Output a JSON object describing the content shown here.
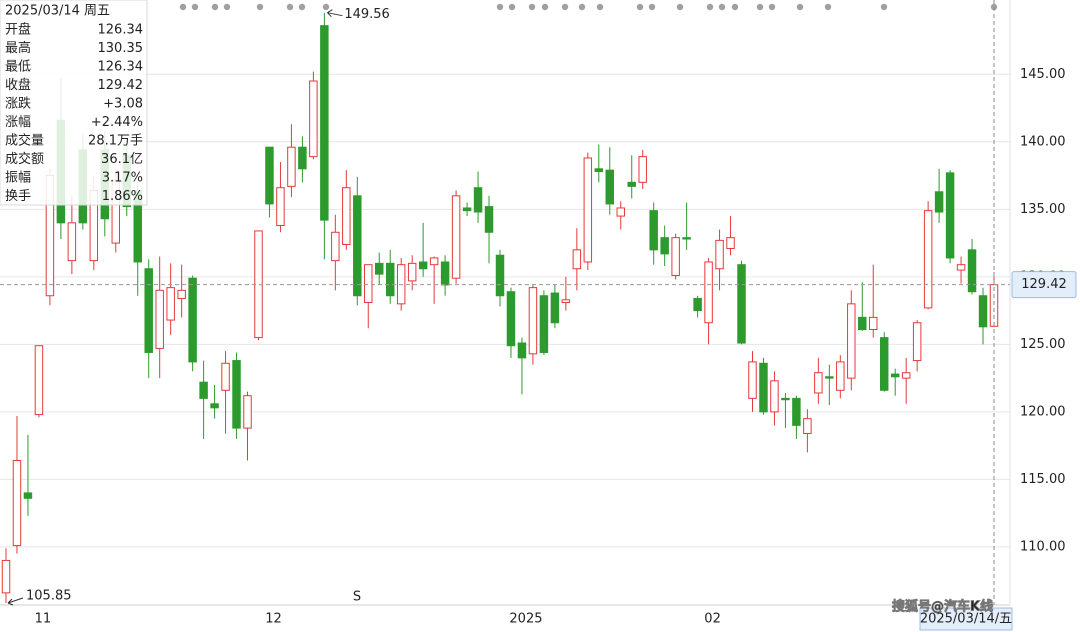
{
  "chart_data": {
    "type": "candlestick",
    "categories": [
      null,
      null,
      null,
      "11",
      null,
      null,
      null,
      null,
      null,
      null,
      null,
      null,
      null,
      null,
      null,
      null,
      null,
      null,
      null,
      null,
      null,
      null,
      null,
      null,
      "12",
      null,
      null,
      null,
      null,
      null,
      null,
      null,
      null,
      null,
      null,
      null,
      null,
      null,
      null,
      null,
      null,
      null,
      null,
      null,
      null,
      null,
      null,
      "2025",
      null,
      null,
      null,
      null,
      null,
      null,
      null,
      null,
      null,
      null,
      null,
      null,
      null,
      null,
      null,
      null,
      "02",
      null,
      null,
      null,
      null,
      null,
      null,
      null,
      null,
      null,
      null,
      null,
      null,
      null,
      null,
      null,
      null,
      null,
      null,
      null,
      null,
      null,
      null,
      null,
      null,
      null,
      "2025/03/14/五"
    ],
    "open": [
      106.6,
      110.1,
      114.0,
      119.8,
      128.6,
      141.6,
      131.2,
      139.4,
      131.2,
      139.4,
      132.5,
      139.0,
      136.4,
      130.6,
      124.7,
      126.8,
      128.4,
      129.9,
      122.2,
      120.6,
      121.6,
      123.8,
      118.8,
      125.5,
      139.6,
      133.8,
      136.7,
      139.6,
      138.9,
      148.6,
      131.2,
      132.4,
      136.0,
      128.1,
      131.0,
      131.0,
      128.0,
      129.7,
      131.1,
      130.9,
      131.1,
      129.9,
      135.1,
      136.6,
      135.2,
      131.6,
      128.9,
      125.1,
      124.3,
      128.6,
      128.8,
      128.1,
      130.6,
      131.1,
      138.0,
      137.9,
      134.5,
      137.0,
      137.0,
      134.9,
      132.9,
      130.1,
      132.9,
      128.4,
      126.6,
      130.6,
      132.1,
      130.9,
      121.0,
      123.6,
      120.0,
      121.0,
      121.0,
      118.4,
      121.4,
      122.6,
      121.6,
      122.5,
      127.0,
      126.1,
      125.5,
      122.8,
      122.5,
      123.8,
      127.7,
      136.3,
      137.7,
      130.5,
      132.0,
      128.6,
      126.34
    ],
    "high": [
      109.9,
      119.7,
      118.3,
      124.9,
      138.0,
      144.7,
      136.0,
      140.5,
      137.5,
      140.8,
      138.0,
      140.2,
      137.0,
      131.3,
      131.5,
      131.0,
      130.9,
      130.1,
      123.8,
      122.0,
      124.5,
      124.4,
      121.5,
      133.4,
      139.6,
      138.5,
      141.3,
      140.4,
      145.2,
      149.56,
      134.6,
      137.9,
      137.4,
      130.9,
      131.8,
      132.0,
      131.4,
      131.6,
      134.0,
      131.5,
      131.6,
      136.4,
      135.5,
      137.8,
      136.0,
      132.0,
      129.2,
      125.5,
      129.4,
      129.0,
      129.4,
      130.0,
      133.6,
      139.2,
      139.8,
      139.6,
      135.6,
      139.0,
      139.4,
      135.5,
      133.8,
      133.2,
      135.5,
      128.6,
      131.4,
      133.5,
      134.5,
      131.2,
      124.5,
      124.0,
      123.0,
      121.4,
      121.2,
      120.2,
      124.0,
      123.5,
      124.2,
      129.0,
      129.6,
      130.9,
      125.9,
      123.2,
      124.0,
      126.8,
      135.6,
      138.0,
      137.9,
      131.5,
      132.8,
      129.2,
      130.35
    ],
    "low": [
      105.85,
      109.5,
      112.3,
      119.6,
      127.9,
      132.8,
      130.2,
      133.5,
      130.5,
      133.0,
      131.8,
      134.5,
      128.6,
      122.5,
      122.5,
      125.7,
      127.0,
      123.0,
      118.0,
      119.5,
      118.4,
      118.0,
      116.4,
      125.3,
      134.4,
      133.3,
      135.9,
      137.0,
      138.7,
      131.3,
      129.0,
      132.0,
      127.9,
      126.2,
      129.4,
      128.0,
      127.5,
      129.0,
      130.0,
      128.0,
      128.6,
      129.5,
      134.5,
      134.0,
      131.0,
      127.8,
      124.0,
      121.3,
      123.5,
      124.2,
      126.2,
      127.5,
      129.0,
      130.5,
      137.0,
      134.6,
      133.5,
      135.8,
      136.5,
      130.9,
      130.8,
      129.8,
      132.0,
      127.0,
      125.0,
      129.0,
      131.6,
      125.0,
      120.0,
      119.8,
      119.0,
      118.8,
      118.0,
      117.0,
      120.6,
      120.5,
      121.0,
      121.6,
      126.0,
      125.5,
      121.5,
      121.2,
      120.6,
      123.0,
      127.6,
      134.0,
      131.0,
      129.5,
      128.7,
      125.0,
      126.34
    ],
    "close": [
      109.0,
      116.4,
      113.6,
      124.9,
      137.5,
      134.0,
      134.0,
      134.0,
      136.4,
      134.3,
      137.1,
      135.2,
      131.1,
      124.4,
      129.0,
      129.2,
      129.0,
      123.7,
      121.0,
      120.3,
      123.6,
      118.8,
      121.2,
      133.4,
      135.4,
      136.6,
      139.6,
      138.0,
      144.5,
      134.2,
      133.3,
      136.6,
      128.6,
      130.9,
      130.2,
      128.6,
      130.9,
      131.0,
      130.6,
      131.4,
      129.4,
      136.0,
      134.9,
      134.8,
      133.3,
      128.6,
      124.9,
      124.0,
      129.2,
      124.4,
      126.6,
      128.3,
      132.0,
      138.8,
      137.8,
      135.4,
      135.1,
      136.7,
      138.9,
      132.0,
      131.7,
      132.9,
      132.8,
      127.5,
      131.1,
      132.7,
      132.9,
      125.1,
      123.7,
      120.0,
      122.3,
      120.9,
      119.0,
      119.5,
      122.9,
      122.5,
      123.7,
      128.0,
      126.1,
      127.0,
      121.6,
      122.6,
      122.9,
      126.6,
      134.9,
      134.8,
      131.4,
      130.9,
      128.9,
      126.3,
      129.42
    ],
    "up_color": "#e5393b",
    "down_color": "#2c9a2c",
    "ylim": [
      105.7,
      150.5
    ],
    "yticks": [
      {
        "value": 110,
        "label": "110.00"
      },
      {
        "value": 115,
        "label": "115.00"
      },
      {
        "value": 120,
        "label": "120.00"
      },
      {
        "value": 125,
        "label": "125.00"
      },
      {
        "value": 130,
        "label": "130.00"
      },
      {
        "value": 135,
        "label": "135.00"
      },
      {
        "value": 140,
        "label": "140.00"
      },
      {
        "value": 145,
        "label": "145.00"
      }
    ],
    "grid": true,
    "max_index": 29,
    "min_index": 0,
    "signal": "S",
    "info": {
      "date": "2025/03/14 周五",
      "rows": [
        {
          "label": "开盘",
          "value": "126.34",
          "color": "#222222"
        },
        {
          "label": "最高",
          "value": "130.35",
          "color": "#e5393b"
        },
        {
          "label": "最低",
          "value": "126.34",
          "color": "#222222"
        },
        {
          "label": "收盘",
          "value": "129.42",
          "color": "#e5393b"
        },
        {
          "label": "涨跌",
          "value": "+3.08",
          "color": "#e5393b"
        },
        {
          "label": "涨幅",
          "value": "+2.44%",
          "color": "#e5393b"
        },
        {
          "label": "成交量",
          "value": "28.1万手",
          "color": "#222222"
        },
        {
          "label": "成交额",
          "value": "36.1亿",
          "color": "#222222"
        },
        {
          "label": "振幅",
          "value": "3.17%",
          "color": "#222222"
        },
        {
          "label": "换手",
          "value": "1.86%",
          "color": "#222222"
        }
      ]
    },
    "watermark": "搜狐号@汽车K线"
  }
}
